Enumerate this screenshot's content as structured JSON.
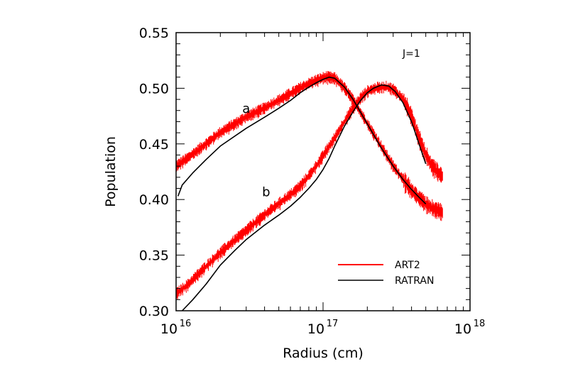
{
  "chart_data": {
    "type": "line",
    "xlabel": "Radius (cm)",
    "ylabel": "Population",
    "xscale": "log",
    "xlim": [
      1e+16,
      1e+18
    ],
    "ylim": [
      0.3,
      0.55
    ],
    "x_ticks": [
      {
        "value": 1e+16,
        "base": "10",
        "exp": "16"
      },
      {
        "value": 1e+17,
        "base": "10",
        "exp": "17"
      },
      {
        "value": 1e+18,
        "base": "10",
        "exp": "18"
      }
    ],
    "y_ticks": [
      {
        "value": 0.3,
        "label": "0.30"
      },
      {
        "value": 0.35,
        "label": "0.35"
      },
      {
        "value": 0.4,
        "label": "0.40"
      },
      {
        "value": 0.45,
        "label": "0.45"
      },
      {
        "value": 0.5,
        "label": "0.50"
      },
      {
        "value": 0.55,
        "label": "0.55"
      }
    ],
    "annotation": "J=1",
    "curve_labels": [
      {
        "text": "a",
        "x": 3e+16,
        "y": 0.478
      },
      {
        "text": "b",
        "x": 4.1e+16,
        "y": 0.403
      }
    ],
    "grid": false,
    "legend_position": "bottom-right",
    "series": [
      {
        "name": "ART2",
        "color": "#ff0000",
        "style": "noisy",
        "curves": [
          {
            "label": "a",
            "x": [
              1e+16,
              1.2e+16,
              1.5e+16,
              2e+16,
              3e+16,
              4e+16,
              5e+16,
              6e+16,
              7e+16,
              8e+16,
              9e+16,
              1.05e+17,
              1.2e+17,
              1.4e+17,
              1.6e+17,
              2e+17,
              2.5e+17,
              3e+17,
              3.5e+17,
              4e+17,
              4.5e+17,
              5e+17,
              5.5e+17,
              6.5e+17
            ],
            "y": [
              0.43,
              0.437,
              0.447,
              0.46,
              0.474,
              0.482,
              0.489,
              0.495,
              0.5,
              0.504,
              0.507,
              0.51,
              0.509,
              0.5,
              0.489,
              0.468,
              0.447,
              0.43,
              0.418,
              0.408,
              0.401,
              0.396,
              0.392,
              0.388
            ]
          },
          {
            "label": "b",
            "x": [
              1e+16,
              1.2e+16,
              1.5e+16,
              2e+16,
              2.5e+16,
              3e+16,
              4e+16,
              5e+16,
              6e+16,
              7e+16,
              8e+16,
              9e+16,
              1e+17,
              1.2e+17,
              1.4e+17,
              1.6e+17,
              1.8e+17,
              2e+17,
              2.3e+17,
              2.7e+17,
              3e+17,
              3.5e+17,
              4e+17,
              4.5e+17,
              5e+17,
              5.5e+17,
              6.5e+17
            ],
            "y": [
              0.315,
              0.323,
              0.336,
              0.352,
              0.363,
              0.372,
              0.386,
              0.396,
              0.404,
              0.412,
              0.421,
              0.43,
              0.439,
              0.455,
              0.47,
              0.482,
              0.491,
              0.497,
              0.5,
              0.501,
              0.499,
              0.49,
              0.475,
              0.455,
              0.44,
              0.43,
              0.42
            ]
          }
        ]
      },
      {
        "name": "RATRAN",
        "color": "#000000",
        "style": "solid",
        "curves": [
          {
            "label": "a",
            "x": [
              1.03e+16,
              1.1e+16,
              1.3e+16,
              1.6e+16,
              2e+16,
              3e+16,
              4e+16,
              5e+16,
              6e+16,
              7e+16,
              8e+16,
              9e+16,
              1e+17,
              1.1e+17,
              1.2e+17,
              1.4e+17,
              1.6e+17,
              2e+17,
              2.5e+17,
              3e+17,
              3.5e+17,
              4e+17,
              4.5e+17,
              5e+17
            ],
            "y": [
              0.403,
              0.413,
              0.424,
              0.436,
              0.448,
              0.464,
              0.474,
              0.482,
              0.489,
              0.496,
              0.501,
              0.505,
              0.508,
              0.51,
              0.509,
              0.501,
              0.49,
              0.468,
              0.446,
              0.43,
              0.418,
              0.409,
              0.402,
              0.396
            ]
          },
          {
            "label": "b",
            "x": [
              1.1e+16,
              1.3e+16,
              1.6e+16,
              2e+16,
              2.5e+16,
              3e+16,
              4e+16,
              5e+16,
              6e+16,
              7e+16,
              8e+16,
              9e+16,
              1e+17,
              1.1e+17,
              1.2e+17,
              1.4e+17,
              1.6e+17,
              1.8e+17,
              2e+17,
              2.2e+17,
              2.5e+17,
              2.8e+17,
              3.1e+17,
              3.5e+17,
              4e+17,
              4.5e+17,
              5e+17
            ],
            "y": [
              0.3,
              0.31,
              0.324,
              0.341,
              0.354,
              0.364,
              0.377,
              0.386,
              0.394,
              0.402,
              0.41,
              0.418,
              0.427,
              0.437,
              0.448,
              0.466,
              0.479,
              0.489,
              0.496,
              0.5,
              0.503,
              0.502,
              0.497,
              0.487,
              0.47,
              0.45,
              0.432
            ]
          }
        ]
      }
    ]
  }
}
